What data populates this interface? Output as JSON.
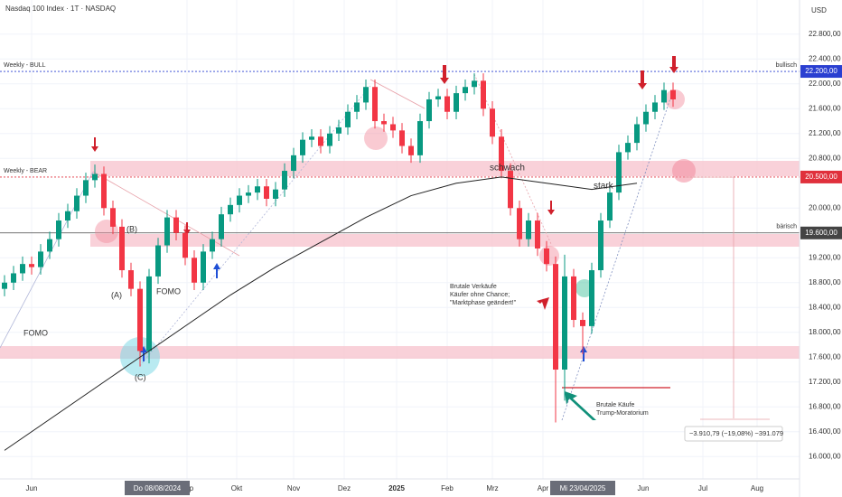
{
  "chart_data": {
    "type": "candlestick",
    "title": "Nasdaq 100 Index · 1T · NASDAQ",
    "currency": "USD",
    "ylim": [
      15640,
      23350
    ],
    "yticks": [
      {
        "value": 22800,
        "label": "22.800,00"
      },
      {
        "value": 22400,
        "label": "22.400,00"
      },
      {
        "value": 22000,
        "label": "22.000,00"
      },
      {
        "value": 21600,
        "label": "21.600,00"
      },
      {
        "value": 21200,
        "label": "21.200,00"
      },
      {
        "value": 20800,
        "label": "20.800,00"
      },
      {
        "value": 20000,
        "label": "20.000,00"
      },
      {
        "value": 19200,
        "label": "19.200,00"
      },
      {
        "value": 18800,
        "label": "18.800,00"
      },
      {
        "value": 18400,
        "label": "18.400,00"
      },
      {
        "value": 18000,
        "label": "18.000,00"
      },
      {
        "value": 17600,
        "label": "17.600,00"
      },
      {
        "value": 17200,
        "label": "17.200,00"
      },
      {
        "value": 16800,
        "label": "16.800,00"
      },
      {
        "value": 16400,
        "label": "16.400,00"
      },
      {
        "value": 16000,
        "label": "16.000,00"
      }
    ],
    "x_labels": [
      "Jun",
      "Sep",
      "Okt",
      "Nov",
      "Dez",
      "2025",
      "Feb",
      "Mrz",
      "Apr",
      "Jun",
      "Jul",
      "Aug"
    ],
    "date_labels": [
      "Do 08/08/2024",
      "Mi 23/04/2025"
    ],
    "up_color": "#089981",
    "down_color": "#f23645",
    "open": [
      18700,
      18800,
      18950,
      19100,
      19050,
      19300,
      19500,
      19800,
      19950,
      20200,
      20450,
      20550,
      20000,
      19700,
      19000,
      18700,
      17700,
      18900,
      19400,
      19850,
      19600,
      19200,
      18800,
      19300,
      19500,
      19900,
      20050,
      20200,
      20250,
      20350,
      20150,
      20300,
      20600,
      20850,
      21100,
      21150,
      21000,
      21200,
      21300,
      21550,
      21700,
      21950,
      21400,
      21350,
      21250,
      21000,
      20850,
      21400,
      21750,
      21800,
      21550,
      21850,
      21950,
      22050,
      21600,
      21150,
      20600,
      20000,
      19500,
      19800,
      19350,
      19100,
      17400,
      18900,
      18200,
      18100,
      19000,
      19800,
      20250,
      20900,
      21050,
      21350,
      21550,
      21700,
      21900
    ],
    "high": [
      18920,
      19070,
      19220,
      19220,
      19420,
      19620,
      19920,
      20070,
      20320,
      20570,
      20700,
      20670,
      20120,
      19820,
      19120,
      18820,
      19020,
      19520,
      19970,
      19970,
      19720,
      19320,
      19420,
      19620,
      20020,
      20170,
      20320,
      20370,
      20470,
      20470,
      20420,
      20720,
      20970,
      21220,
      21270,
      21270,
      21320,
      21420,
      21670,
      21820,
      22070,
      22070,
      21520,
      21470,
      21370,
      21120,
      21520,
      21870,
      21920,
      21920,
      21970,
      22070,
      22170,
      22170,
      21720,
      21270,
      20720,
      20120,
      19920,
      19920,
      19470,
      19220,
      19250,
      19020,
      18320,
      19120,
      19920,
      20370,
      21020,
      21170,
      21470,
      21670,
      21820,
      22020,
      22020
    ],
    "low": [
      18580,
      18680,
      18830,
      18930,
      18930,
      19180,
      19380,
      19680,
      19830,
      20080,
      20330,
      19880,
      19580,
      18880,
      18580,
      17450,
      17500,
      18780,
      19280,
      19480,
      19080,
      18680,
      18680,
      19180,
      19380,
      19780,
      19930,
      20080,
      20130,
      20030,
      20030,
      20180,
      20480,
      20730,
      20980,
      20880,
      20880,
      21080,
      21180,
      21430,
      21580,
      21280,
      21230,
      21130,
      20880,
      20730,
      20730,
      21280,
      21630,
      21430,
      21430,
      21730,
      21830,
      21480,
      21030,
      20480,
      19880,
      19380,
      19380,
      19230,
      18980,
      16550,
      16900,
      18080,
      17650,
      17980,
      18880,
      19680,
      20130,
      20780,
      20930,
      21230,
      21430,
      21580,
      21630
    ],
    "close": [
      18800,
      18950,
      19100,
      19050,
      19300,
      19500,
      19800,
      19950,
      20200,
      20450,
      20550,
      20000,
      19700,
      19000,
      18700,
      17700,
      18900,
      19400,
      19850,
      19600,
      19200,
      18800,
      19300,
      19500,
      19900,
      20050,
      20200,
      20250,
      20350,
      20150,
      20300,
      20600,
      20850,
      21100,
      21150,
      21000,
      21200,
      21300,
      21550,
      21700,
      21950,
      21400,
      21350,
      21250,
      21000,
      20850,
      21400,
      21750,
      21800,
      21550,
      21850,
      21950,
      22050,
      21600,
      21150,
      20600,
      20000,
      19500,
      19800,
      19350,
      19100,
      17400,
      18900,
      18200,
      18100,
      19000,
      19800,
      20250,
      20900,
      21050,
      21350,
      21550,
      21700,
      21900,
      21750
    ],
    "moving_average": {
      "color": "#222222",
      "values": [
        16100,
        16600,
        17100,
        17600,
        18100,
        18600,
        19050,
        19450,
        19850,
        20200,
        20400,
        20500,
        20400,
        20300,
        20400
      ]
    },
    "levels": [
      {
        "name": "Weekly - BULL",
        "side_label": "bullisch",
        "value": 22200,
        "label": "22.200,00",
        "color": "#2a3fd1"
      },
      {
        "name": "Weekly - BEAR",
        "value": 20500,
        "label": "20.500,00",
        "color": "#e0303c"
      },
      {
        "side_label": "bärisch",
        "value": 19600,
        "label": "19.600,00",
        "color": "#444444"
      }
    ],
    "annotations": {
      "schwach": "schwach",
      "stark": "stark",
      "fomo_1": "FOMO",
      "fomo_2": "FOMO",
      "wave_a": "(A)",
      "wave_b": "(B)",
      "wave_c": "(C)",
      "sell_note": [
        "Brutale Verkäufe",
        "Käufer ohne Chance;",
        "\"Marktphase geändert!\""
      ],
      "buy_note": [
        "Brutale Käufe",
        "Trump-Moratorium"
      ],
      "measure": "−3.910,79 (−19,08%) −391.079"
    }
  }
}
